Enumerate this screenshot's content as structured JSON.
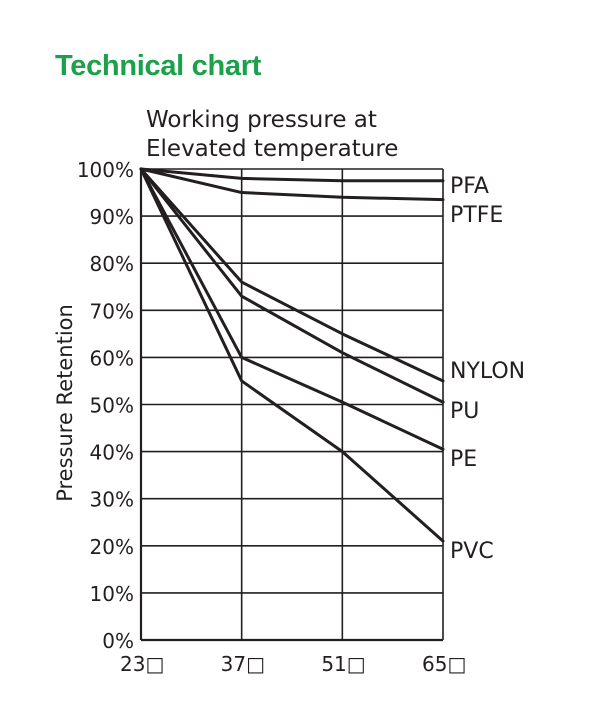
{
  "page": {
    "title": "Technical chart",
    "subtitle_lines": [
      "Working pressure at",
      "Elevated temperature"
    ]
  },
  "chart_data": {
    "type": "line",
    "ylabel": "Pressure Retention",
    "xlabel": "",
    "x": [
      23,
      37,
      51,
      65
    ],
    "x_tick_labels": [
      "23□",
      "37□",
      "51□",
      "65□"
    ],
    "y_tick_labels": [
      "0%",
      "10%",
      "20%",
      "30%",
      "40%",
      "50%",
      "60%",
      "70%",
      "80%",
      "90%",
      "100%"
    ],
    "ylim": [
      0,
      100
    ],
    "xlim": [
      23,
      65
    ],
    "grid": true,
    "colors": {
      "line": "#231f20",
      "grid": "#231f20",
      "title": "#1aa14a"
    },
    "series": [
      {
        "name": "PFA",
        "values": [
          100,
          98,
          97.5,
          97.5
        ]
      },
      {
        "name": "PTFE",
        "values": [
          100,
          95,
          94,
          93.5
        ]
      },
      {
        "name": "NYLON",
        "values": [
          100,
          76,
          65,
          55
        ]
      },
      {
        "name": "PU",
        "values": [
          100,
          73,
          61,
          50.5
        ]
      },
      {
        "name": "PE",
        "values": [
          100,
          60,
          50.5,
          40.5
        ]
      },
      {
        "name": "PVC",
        "values": [
          100,
          55,
          40,
          21
        ]
      }
    ]
  }
}
